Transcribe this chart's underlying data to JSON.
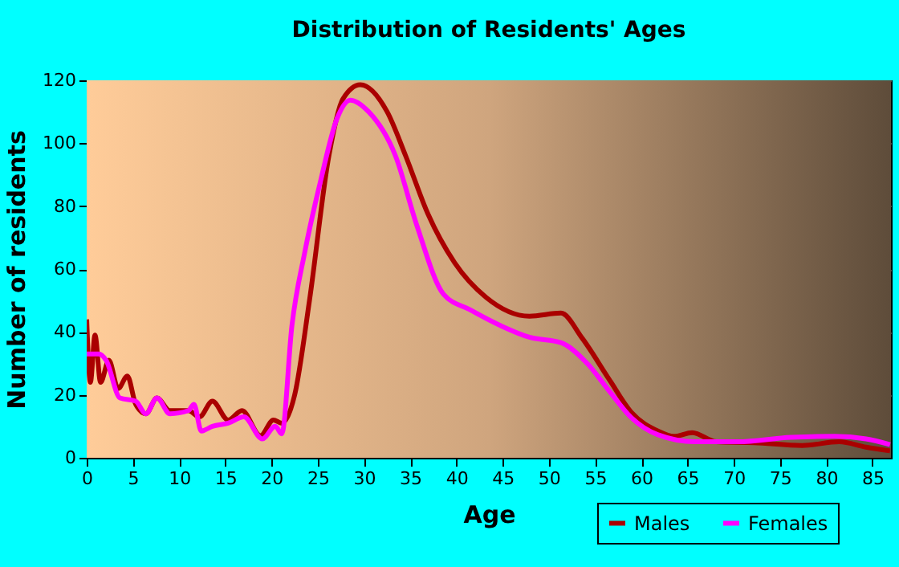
{
  "chart_data": {
    "type": "line",
    "title": "Distribution of Residents' Ages",
    "xlabel": "Age",
    "ylabel": "Number of residents",
    "xlim": [
      0,
      87
    ],
    "xticks": [
      0,
      5,
      10,
      15,
      20,
      25,
      30,
      35,
      40,
      45,
      50,
      55,
      60,
      65,
      70,
      75,
      80,
      85
    ],
    "ylim": [
      0,
      120
    ],
    "yticks": [
      0,
      20,
      40,
      60,
      80,
      100,
      120
    ],
    "grid": true,
    "legend": "bottom right",
    "marker": "none",
    "line_style": "solid",
    "series": [
      {
        "name": "Males",
        "color": "#aa0000",
        "x": [
          0,
          0.4,
          0.9,
          1.5,
          2.4,
          3.4,
          4.4,
          5.3,
          6.4,
          7.6,
          9,
          11,
          12.2,
          13.6,
          15.3,
          16.8,
          18.8,
          20.2,
          21.1,
          22.5,
          24.1,
          26.2,
          27.7,
          29.6,
          32.5,
          34.5,
          36.9,
          39.8,
          43.2,
          47.9,
          51.3,
          53.6,
          56.5,
          58.9,
          61.8,
          63.5,
          65.5,
          68.1,
          72.2,
          77.4,
          81.4,
          84.3,
          86.9
        ],
        "values": [
          44,
          24,
          39,
          24,
          31,
          22,
          26,
          17,
          14,
          19,
          15,
          15,
          13,
          18,
          12,
          15,
          7,
          12,
          11,
          20,
          50,
          96,
          114,
          118.6,
          110,
          96,
          77.6,
          62,
          51,
          45,
          46,
          38,
          25,
          14.5,
          8.5,
          6.8,
          8,
          5.1,
          4.8,
          3.9,
          5.1,
          3.4,
          2.2
        ]
      },
      {
        "name": "Females",
        "color": "#ff00ff",
        "x": [
          0,
          1.3,
          2.1,
          3.6,
          5.3,
          6.4,
          7.6,
          9,
          11,
          11.6,
          12.4,
          13.6,
          15.3,
          17,
          19,
          20.4,
          21.1,
          22.2,
          23.6,
          25.3,
          27.1,
          28.5,
          30.5,
          33.4,
          35.7,
          38.6,
          41.5,
          45,
          47.9,
          51.3,
          54.2,
          56.5,
          58.9,
          61.8,
          65.8,
          70.4,
          76.2,
          80.9,
          84.3,
          86.9
        ],
        "values": [
          33,
          33,
          31,
          19,
          18,
          14,
          19,
          14,
          15,
          17,
          8.5,
          10,
          11,
          13,
          6,
          10,
          7.6,
          42,
          65.5,
          88,
          108,
          113.7,
          110,
          96,
          74,
          52,
          47,
          41.7,
          38.3,
          36.6,
          29.8,
          21.3,
          12.8,
          7.3,
          5.1,
          5.1,
          6.5,
          6.8,
          6,
          4.2
        ]
      }
    ]
  }
}
